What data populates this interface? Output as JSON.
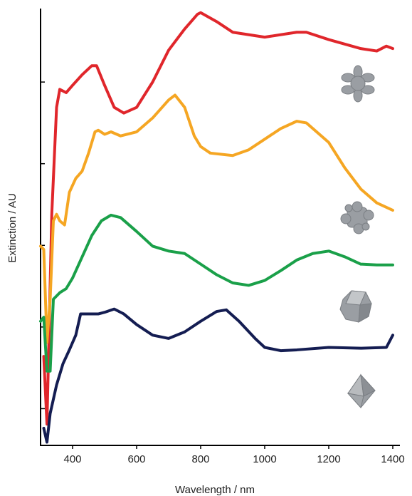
{
  "chart_data": {
    "type": "line",
    "xlabel": "Wavelength / nm",
    "ylabel": "Extinction / AU",
    "xlim": [
      300,
      1400
    ],
    "xticks": [
      400,
      600,
      800,
      1000,
      1200,
      1400
    ],
    "ylim": [
      -0.45,
      4.9
    ],
    "yticks": [
      0,
      1,
      2,
      3,
      4
    ],
    "series": [
      {
        "color": "#e0262b",
        "x": [
          310,
          320,
          335,
          350,
          360,
          380,
          400,
          430,
          460,
          475,
          500,
          530,
          560,
          600,
          650,
          700,
          750,
          790,
          800,
          850,
          900,
          1000,
          1100,
          1130,
          1200,
          1300,
          1350,
          1380,
          1400
        ],
        "values": [
          0.64,
          -0.19,
          2.38,
          3.69,
          3.91,
          3.87,
          3.96,
          4.09,
          4.2,
          4.2,
          3.96,
          3.69,
          3.62,
          3.69,
          4.0,
          4.39,
          4.65,
          4.83,
          4.85,
          4.74,
          4.61,
          4.55,
          4.61,
          4.61,
          4.52,
          4.41,
          4.38,
          4.44,
          4.41
        ]
      },
      {
        "color": "#f5a623",
        "x": [
          300,
          310,
          320,
          330,
          340,
          350,
          360,
          375,
          390,
          410,
          430,
          450,
          470,
          480,
          500,
          520,
          550,
          600,
          650,
          700,
          720,
          750,
          780,
          800,
          830,
          900,
          950,
          1000,
          1050,
          1100,
          1130,
          1200,
          1250,
          1300,
          1350,
          1400
        ],
        "values": [
          1.99,
          1.95,
          0.81,
          1.34,
          2.3,
          2.38,
          2.3,
          2.25,
          2.65,
          2.82,
          2.91,
          3.13,
          3.39,
          3.41,
          3.36,
          3.39,
          3.34,
          3.39,
          3.56,
          3.78,
          3.84,
          3.69,
          3.34,
          3.21,
          3.13,
          3.1,
          3.17,
          3.3,
          3.43,
          3.52,
          3.5,
          3.26,
          2.95,
          2.69,
          2.52,
          2.43
        ]
      },
      {
        "color": "#1aa049",
        "x": [
          300,
          310,
          320,
          330,
          340,
          360,
          380,
          400,
          430,
          460,
          490,
          520,
          550,
          600,
          650,
          700,
          750,
          800,
          850,
          900,
          950,
          1000,
          1050,
          1100,
          1150,
          1200,
          1250,
          1300,
          1350,
          1400
        ],
        "values": [
          1.07,
          1.12,
          0.46,
          0.46,
          1.34,
          1.42,
          1.47,
          1.6,
          1.86,
          2.12,
          2.3,
          2.37,
          2.34,
          2.17,
          1.99,
          1.93,
          1.9,
          1.77,
          1.64,
          1.54,
          1.51,
          1.57,
          1.69,
          1.82,
          1.9,
          1.93,
          1.86,
          1.77,
          1.76,
          1.76
        ]
      },
      {
        "color": "#141d52",
        "x": [
          310,
          320,
          330,
          350,
          370,
          390,
          410,
          425,
          450,
          480,
          500,
          530,
          560,
          600,
          650,
          700,
          750,
          800,
          850,
          880,
          920,
          970,
          1000,
          1050,
          1100,
          1200,
          1300,
          1380,
          1400
        ],
        "values": [
          -0.24,
          -0.41,
          -0.06,
          0.29,
          0.55,
          0.72,
          0.9,
          1.16,
          1.16,
          1.16,
          1.18,
          1.22,
          1.16,
          1.03,
          0.9,
          0.86,
          0.94,
          1.07,
          1.19,
          1.21,
          1.07,
          0.86,
          0.75,
          0.71,
          0.72,
          0.75,
          0.74,
          0.75,
          0.9
        ]
      }
    ]
  }
}
